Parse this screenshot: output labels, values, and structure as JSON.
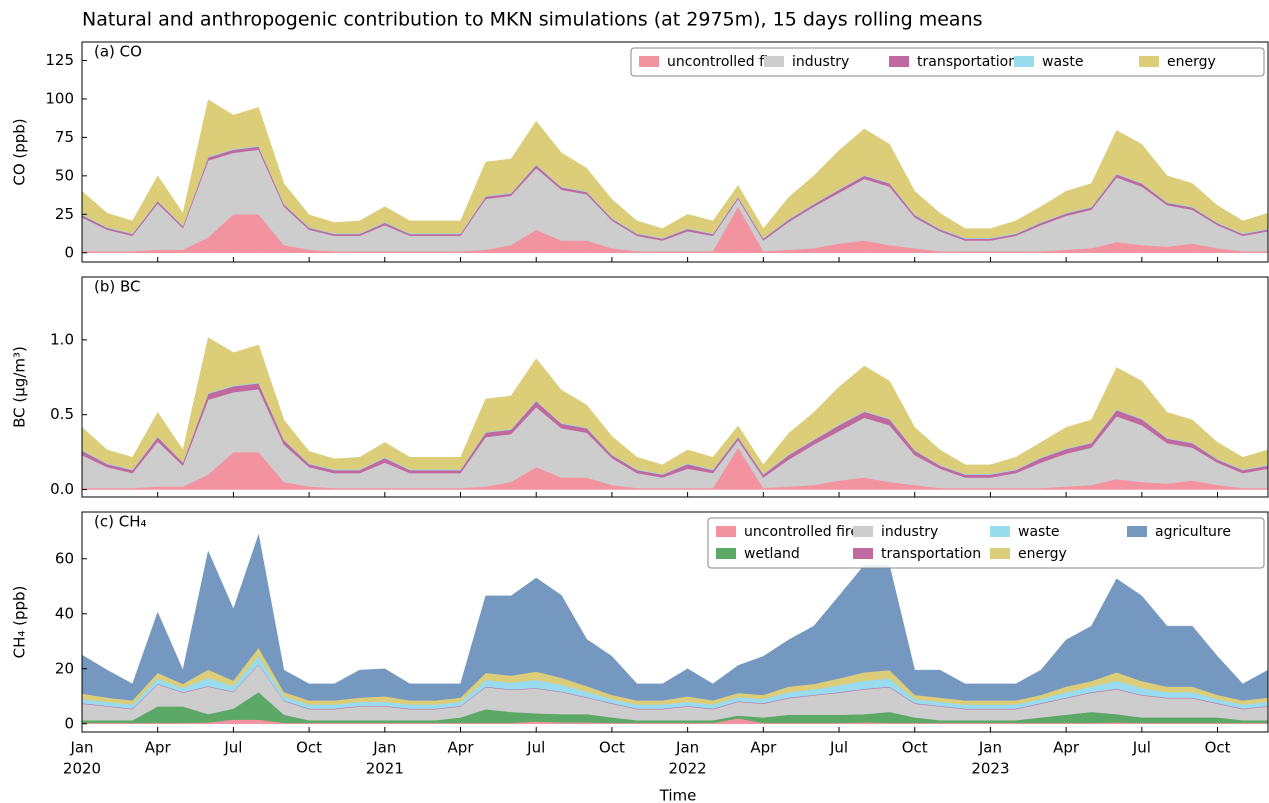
{
  "title": "Natural and anthropogenic contribution to MKN simulations (at 2975m), 15 days rolling means",
  "xlabel": "Time",
  "x": [
    "2020-01",
    "2020-02",
    "2020-03",
    "2020-04",
    "2020-05",
    "2020-06",
    "2020-07",
    "2020-08",
    "2020-09",
    "2020-10",
    "2020-11",
    "2020-12",
    "2021-01",
    "2021-02",
    "2021-03",
    "2021-04",
    "2021-05",
    "2021-06",
    "2021-07",
    "2021-08",
    "2021-09",
    "2021-10",
    "2021-11",
    "2021-12",
    "2022-01",
    "2022-02",
    "2022-03",
    "2022-04",
    "2022-05",
    "2022-06",
    "2022-07",
    "2022-08",
    "2022-09",
    "2022-10",
    "2022-11",
    "2022-12",
    "2023-01",
    "2023-02",
    "2023-03",
    "2023-04",
    "2023-05",
    "2023-06",
    "2023-07",
    "2023-08",
    "2023-09",
    "2023-10",
    "2023-11",
    "2023-12"
  ],
  "xlim": [
    "2020-01",
    "2023-12"
  ],
  "xticks": [
    {
      "value": "2020-01",
      "label": "Jan"
    },
    {
      "value": "2020-04",
      "label": "Apr"
    },
    {
      "value": "2020-07",
      "label": "Jul"
    },
    {
      "value": "2020-10",
      "label": "Oct"
    },
    {
      "value": "2021-01",
      "label": "Jan"
    },
    {
      "value": "2021-04",
      "label": "Apr"
    },
    {
      "value": "2021-07",
      "label": "Jul"
    },
    {
      "value": "2021-10",
      "label": "Oct"
    },
    {
      "value": "2022-01",
      "label": "Jan"
    },
    {
      "value": "2022-04",
      "label": "Apr"
    },
    {
      "value": "2022-07",
      "label": "Jul"
    },
    {
      "value": "2022-10",
      "label": "Oct"
    },
    {
      "value": "2023-01",
      "label": "Jan"
    },
    {
      "value": "2023-04",
      "label": "Apr"
    },
    {
      "value": "2023-07",
      "label": "Jul"
    },
    {
      "value": "2023-10",
      "label": "Oct"
    }
  ],
  "xtick_years": [
    {
      "value": "2020-01",
      "label": "2020"
    },
    {
      "value": "2021-01",
      "label": "2021"
    },
    {
      "value": "2022-01",
      "label": "2022"
    },
    {
      "value": "2023-01",
      "label": "2023"
    }
  ],
  "chart_data": [
    {
      "type": "stacked_area",
      "title": "(a) CO",
      "ylabel": "CO (ppb)",
      "ylim": [
        -6,
        137
      ],
      "yticks": [
        0,
        25,
        50,
        75,
        100,
        125
      ],
      "legend": "upper right",
      "legend_cols": 5,
      "series": [
        {
          "name": "uncontrolled fire",
          "color": "#f2939f",
          "values": [
            1,
            1,
            1,
            2,
            2,
            10,
            25,
            25,
            5,
            2,
            1,
            1,
            1,
            1,
            1,
            1,
            2,
            5,
            15,
            8,
            8,
            3,
            1,
            1,
            1,
            1,
            30,
            1,
            2,
            3,
            6,
            8,
            5,
            3,
            1,
            1,
            1,
            1,
            1,
            2,
            3,
            7,
            5,
            4,
            6,
            3,
            1,
            1
          ]
        },
        {
          "name": "industry",
          "color": "#cdcdcd",
          "values": [
            22,
            14,
            10,
            30,
            14,
            50,
            40,
            42,
            25,
            13,
            10,
            10,
            17,
            10,
            10,
            10,
            33,
            32,
            40,
            33,
            30,
            18,
            10,
            7,
            13,
            10,
            5,
            7,
            18,
            27,
            33,
            40,
            38,
            20,
            13,
            7,
            7,
            10,
            17,
            22,
            25,
            42,
            38,
            27,
            22,
            15,
            10,
            13
          ]
        },
        {
          "name": "transportation",
          "color": "#c0699e",
          "values": [
            1.5,
            1.2,
            1.2,
            1.5,
            1.2,
            2,
            2,
            2,
            1.5,
            1.2,
            1.2,
            1.2,
            1.5,
            1.2,
            1.2,
            1.2,
            1.5,
            1.5,
            2,
            1.5,
            1.5,
            1.2,
            1.2,
            1.2,
            1.5,
            1.2,
            1.2,
            1.2,
            1.5,
            1.5,
            2,
            2,
            2,
            1.5,
            1.2,
            1.2,
            1.2,
            1.2,
            1.5,
            1.5,
            1.5,
            2,
            2,
            1.5,
            1.5,
            1.2,
            1.2,
            1.2
          ]
        },
        {
          "name": "waste",
          "color": "#99dbef",
          "values": [
            0.5,
            0.5,
            0.5,
            0.5,
            0.5,
            0.5,
            0.5,
            0.5,
            0.5,
            0.5,
            0.5,
            0.5,
            0.5,
            0.5,
            0.5,
            0.5,
            0.5,
            0.5,
            0.5,
            0.5,
            0.5,
            0.5,
            0.5,
            0.5,
            0.5,
            0.5,
            0.5,
            0.5,
            0.5,
            0.5,
            0.5,
            0.5,
            0.5,
            0.5,
            0.5,
            0.5,
            0.5,
            0.5,
            0.5,
            0.5,
            0.5,
            0.5,
            0.5,
            0.5,
            0.5,
            0.5,
            0.5,
            0.5
          ]
        },
        {
          "name": "energy",
          "color": "#dccd79",
          "values": [
            15,
            9,
            8,
            16,
            8,
            37,
            22,
            25,
            13,
            8,
            7,
            8,
            10,
            8,
            8,
            8,
            22,
            22,
            28,
            22,
            15,
            12,
            8,
            6,
            9,
            8,
            7,
            6,
            14,
            18,
            25,
            30,
            25,
            15,
            10,
            6,
            6,
            8,
            10,
            14,
            15,
            28,
            25,
            17,
            15,
            11,
            8,
            10
          ]
        }
      ]
    },
    {
      "type": "stacked_area",
      "title": "(b) BC",
      "ylabel": "BC (µg/m³)",
      "ylim": [
        -0.05,
        1.42
      ],
      "yticks": [
        {
          "value": 0,
          "label": "0.0"
        },
        {
          "value": 0.5,
          "label": "0.5"
        },
        {
          "value": 1,
          "label": "1.0"
        }
      ],
      "series": [
        {
          "name": "uncontrolled fire",
          "color": "#f2939f",
          "values": [
            0.01,
            0.01,
            0.01,
            0.02,
            0.02,
            0.1,
            0.25,
            0.25,
            0.05,
            0.02,
            0.01,
            0.01,
            0.01,
            0.01,
            0.01,
            0.01,
            0.02,
            0.05,
            0.15,
            0.08,
            0.08,
            0.03,
            0.01,
            0.01,
            0.01,
            0.01,
            0.28,
            0.01,
            0.02,
            0.03,
            0.06,
            0.08,
            0.05,
            0.03,
            0.01,
            0.01,
            0.01,
            0.01,
            0.01,
            0.02,
            0.03,
            0.07,
            0.05,
            0.04,
            0.06,
            0.03,
            0.01,
            0.01
          ]
        },
        {
          "name": "industry",
          "color": "#cdcdcd",
          "values": [
            0.22,
            0.14,
            0.1,
            0.3,
            0.14,
            0.5,
            0.4,
            0.42,
            0.25,
            0.13,
            0.1,
            0.1,
            0.17,
            0.1,
            0.1,
            0.1,
            0.33,
            0.32,
            0.4,
            0.33,
            0.3,
            0.18,
            0.1,
            0.07,
            0.13,
            0.1,
            0.05,
            0.07,
            0.18,
            0.27,
            0.33,
            0.4,
            0.38,
            0.2,
            0.13,
            0.07,
            0.07,
            0.1,
            0.17,
            0.22,
            0.25,
            0.42,
            0.38,
            0.27,
            0.22,
            0.15,
            0.1,
            0.13
          ]
        },
        {
          "name": "transportation",
          "color": "#c0699e",
          "values": [
            0.03,
            0.02,
            0.02,
            0.03,
            0.02,
            0.04,
            0.04,
            0.04,
            0.03,
            0.02,
            0.02,
            0.02,
            0.03,
            0.02,
            0.02,
            0.02,
            0.03,
            0.03,
            0.04,
            0.03,
            0.03,
            0.02,
            0.02,
            0.02,
            0.03,
            0.02,
            0.02,
            0.02,
            0.03,
            0.03,
            0.04,
            0.04,
            0.04,
            0.03,
            0.02,
            0.02,
            0.02,
            0.02,
            0.03,
            0.03,
            0.03,
            0.04,
            0.04,
            0.03,
            0.03,
            0.02,
            0.02,
            0.02
          ]
        },
        {
          "name": "waste",
          "color": "#99dbef",
          "values": [
            0.005,
            0.005,
            0.005,
            0.005,
            0.005,
            0.005,
            0.005,
            0.005,
            0.005,
            0.005,
            0.005,
            0.005,
            0.005,
            0.005,
            0.005,
            0.005,
            0.005,
            0.005,
            0.005,
            0.005,
            0.005,
            0.005,
            0.005,
            0.005,
            0.005,
            0.005,
            0.005,
            0.005,
            0.005,
            0.005,
            0.005,
            0.005,
            0.005,
            0.005,
            0.005,
            0.005,
            0.005,
            0.005,
            0.005,
            0.005,
            0.005,
            0.005,
            0.005,
            0.005,
            0.005,
            0.005,
            0.005,
            0.005
          ]
        },
        {
          "name": "energy",
          "color": "#dccd79",
          "values": [
            0.15,
            0.09,
            0.08,
            0.16,
            0.08,
            0.37,
            0.22,
            0.25,
            0.13,
            0.08,
            0.07,
            0.08,
            0.1,
            0.08,
            0.08,
            0.08,
            0.22,
            0.22,
            0.28,
            0.22,
            0.15,
            0.12,
            0.08,
            0.06,
            0.09,
            0.08,
            0.07,
            0.06,
            0.14,
            0.18,
            0.25,
            0.3,
            0.25,
            0.15,
            0.1,
            0.06,
            0.06,
            0.08,
            0.1,
            0.14,
            0.15,
            0.28,
            0.25,
            0.17,
            0.15,
            0.11,
            0.08,
            0.1
          ]
        }
      ]
    },
    {
      "type": "stacked_area",
      "title": "(c) CH₄",
      "ylabel": "CH₄ (ppb)",
      "ylim": [
        -3,
        77
      ],
      "yticks": [
        0,
        20,
        40,
        60
      ],
      "legend": "upper right",
      "legend_cols": 4,
      "series": [
        {
          "name": "uncontrolled fire",
          "color": "#f2939f",
          "values": [
            0.3,
            0.3,
            0.3,
            0.3,
            0.3,
            0.5,
            1.5,
            1.5,
            0.3,
            0.3,
            0.3,
            0.3,
            0.3,
            0.3,
            0.3,
            0.3,
            0.3,
            0.3,
            0.8,
            0.5,
            0.5,
            0.3,
            0.3,
            0.3,
            0.3,
            0.3,
            2,
            0.3,
            0.3,
            0.3,
            0.3,
            0.5,
            0.3,
            0.3,
            0.3,
            0.3,
            0.3,
            0.3,
            0.3,
            0.3,
            0.3,
            0.5,
            0.3,
            0.3,
            0.3,
            0.3,
            0.3,
            0.3
          ]
        },
        {
          "name": "wetland",
          "color": "#5ca866",
          "values": [
            1,
            1,
            1,
            6,
            6,
            3,
            4,
            10,
            3,
            1,
            1,
            1,
            1,
            1,
            1,
            2,
            5,
            4,
            3,
            3,
            3,
            2,
            1,
            1,
            1,
            1,
            1,
            2,
            3,
            3,
            3,
            3,
            4,
            2,
            1,
            1,
            1,
            1,
            2,
            3,
            4,
            3,
            2,
            2,
            2,
            2,
            1,
            1
          ]
        },
        {
          "name": "industry",
          "color": "#cdcdcd",
          "values": [
            6,
            5,
            4,
            8,
            5,
            10,
            6,
            10,
            5,
            4,
            4,
            5,
            5,
            4,
            4,
            4,
            8,
            8,
            9,
            8,
            6,
            5,
            4,
            4,
            5,
            4,
            5,
            5,
            6,
            7,
            8,
            9,
            9,
            5,
            5,
            4,
            4,
            4,
            5,
            6,
            7,
            9,
            8,
            7,
            7,
            5,
            4,
            5
          ]
        },
        {
          "name": "transportation",
          "color": "#c0699e",
          "values": [
            0.2,
            0.2,
            0.2,
            0.2,
            0.2,
            0.2,
            0.2,
            0.2,
            0.2,
            0.2,
            0.2,
            0.2,
            0.2,
            0.2,
            0.2,
            0.2,
            0.2,
            0.2,
            0.2,
            0.2,
            0.2,
            0.2,
            0.2,
            0.2,
            0.2,
            0.2,
            0.2,
            0.2,
            0.2,
            0.2,
            0.2,
            0.2,
            0.2,
            0.2,
            0.2,
            0.2,
            0.2,
            0.2,
            0.2,
            0.2,
            0.2,
            0.2,
            0.2,
            0.2,
            0.2,
            0.2,
            0.2,
            0.2
          ]
        },
        {
          "name": "waste",
          "color": "#99dbef",
          "values": [
            1.5,
            1.5,
            1.5,
            2,
            1.5,
            3,
            2,
            3,
            1.5,
            1.5,
            1.5,
            1.5,
            1.5,
            1.5,
            1.5,
            1.5,
            2.5,
            2.5,
            3,
            2.5,
            2,
            1.5,
            1.5,
            1.5,
            1.5,
            1.5,
            1.5,
            1.5,
            2,
            2,
            2.5,
            3,
            3,
            1.5,
            1.5,
            1.5,
            1.5,
            1.5,
            1.5,
            2,
            2,
            3,
            2.5,
            2,
            2,
            1.5,
            1.5,
            1.5
          ]
        },
        {
          "name": "energy",
          "color": "#dccd79",
          "values": [
            2,
            1.5,
            1.5,
            2,
            1.5,
            3,
            2,
            3,
            1.5,
            1.5,
            1.5,
            1.5,
            2,
            1.5,
            1.5,
            1.5,
            2.5,
            2.5,
            3,
            2.5,
            2,
            1.5,
            1.5,
            1.5,
            2,
            1.5,
            1.5,
            1.5,
            2,
            2,
            2.5,
            3,
            3,
            1.5,
            1.5,
            1.5,
            1.5,
            1.5,
            1.5,
            2,
            2,
            3,
            2.5,
            2,
            2,
            1.5,
            1.5,
            1.5
          ]
        },
        {
          "name": "agriculture",
          "color": "#7598c1",
          "values": [
            14,
            10,
            6,
            22,
            5,
            43,
            26,
            41,
            8,
            6,
            6,
            10,
            10,
            6,
            6,
            5,
            28,
            29,
            34,
            30,
            17,
            14,
            6,
            6,
            10,
            6,
            10,
            14,
            17,
            21,
            30,
            39,
            38,
            9,
            10,
            6,
            6,
            6,
            9,
            17,
            20,
            34,
            31,
            22,
            22,
            14,
            6,
            10
          ]
        }
      ]
    }
  ]
}
